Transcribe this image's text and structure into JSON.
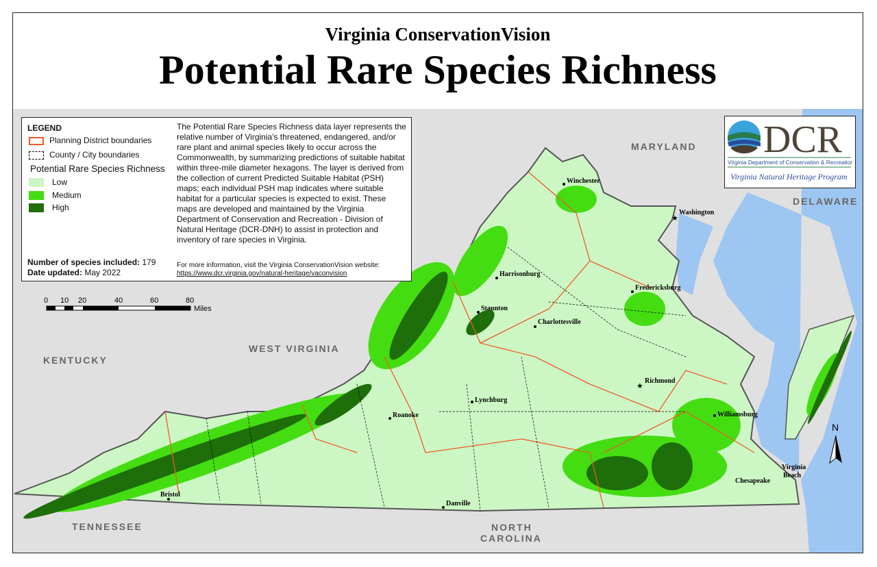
{
  "header": {
    "subtitle": "Virginia ConservationVision",
    "title": "Potential Rare Species Richness"
  },
  "legend": {
    "heading": "LEGEND",
    "boundaries": [
      {
        "label": "Planning District boundaries",
        "color": "#f05a28"
      },
      {
        "label": "County / City boundaries",
        "color": "#000000"
      }
    ],
    "richness_title": "Potential Rare Species Richness",
    "classes": [
      {
        "label": "Low",
        "color": "#ccf7c4"
      },
      {
        "label": "Medium",
        "color": "#44dd11"
      },
      {
        "label": "High",
        "color": "#1e6e0a"
      }
    ],
    "species_label": "Number of species included:",
    "species_value": "179",
    "date_label": "Date updated:",
    "date_value": "May 2022",
    "description": "The Potential Rare Species Richness data layer represents the relative number of Virginia's threatened, endangered, and/or rare plant and animal species likely to occur across the Commonwealth, by summarizing predictions of suitable habitat within three-mile diameter hexagons. The layer is derived from the collection of current Predicted Suitable Habitat (PSH) maps; each individual PSH map indicates where suitable habitat for a particular species is expected to exist. These maps are developed and maintained by the Virginia Department of Conservation and Recreation - Division of Natural Heritage (DCR-DNH) to assist in protection and inventory of rare species in Virginia.",
    "more_info": "For more information, visit the Virginia ConservationVision website:",
    "url": "https://www.dcr.virginia.gov/natural-heritage/vaconvision"
  },
  "scale": {
    "ticks": [
      "0",
      "10",
      "20",
      "40",
      "60",
      "80"
    ],
    "unit": "Miles"
  },
  "logo": {
    "letters": "DCR",
    "department": "Virginia Department of Conservation & Recreation",
    "program": "Virginia Natural Heritage Program"
  },
  "states": [
    "MARYLAND",
    "DELAWARE",
    "KENTUCKY",
    "WEST VIRGINIA",
    "TENNESSEE",
    "NORTH",
    "CAROLINA"
  ],
  "cities": [
    "Winchester",
    "Washington",
    "Harrisonburg",
    "Fredericksburg",
    "Staunton",
    "Charlottesville",
    "Richmond",
    "Lynchburg",
    "Roanoke",
    "Williamsburg",
    "Virginia",
    "Beach",
    "Chesapeake",
    "Bristol",
    "Danville"
  ],
  "north_label": "N",
  "colors": {
    "land": "#e0e0e0",
    "water": "#9ec6f2",
    "low": "#ccf7c4",
    "medium": "#44dd11",
    "high": "#1e6e0a",
    "district": "#f05a28"
  }
}
